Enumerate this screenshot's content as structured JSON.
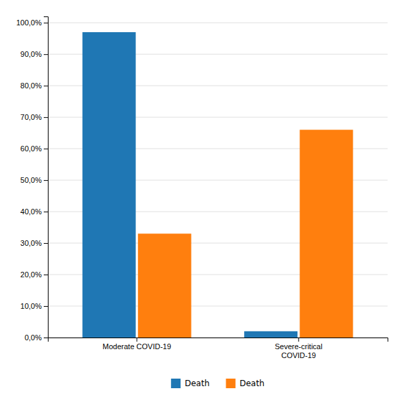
{
  "chart_data": {
    "type": "bar",
    "categories": [
      "Moderate COVID-19",
      "Severe-critical\nCOVID-19"
    ],
    "series": [
      {
        "name": "Death",
        "values": [
          97.0,
          2.0
        ]
      },
      {
        "name": "Death",
        "values": [
          33.0,
          66.0
        ]
      }
    ],
    "ylim": [
      0,
      102
    ],
    "yticks": [
      {
        "value": 0,
        "label": "0,0%"
      },
      {
        "value": 10,
        "label": "10,0%"
      },
      {
        "value": 20,
        "label": "20,0%"
      },
      {
        "value": 30,
        "label": "30,0%"
      },
      {
        "value": 40,
        "label": "40,0%"
      },
      {
        "value": 50,
        "label": "50,0%"
      },
      {
        "value": 60,
        "label": "60,0%"
      },
      {
        "value": 70,
        "label": "70,0%"
      },
      {
        "value": 80,
        "label": "80,0%"
      },
      {
        "value": 90,
        "label": "90,0%"
      },
      {
        "value": 100,
        "label": "100,0%"
      }
    ],
    "grid": true,
    "legend": "bottom"
  }
}
